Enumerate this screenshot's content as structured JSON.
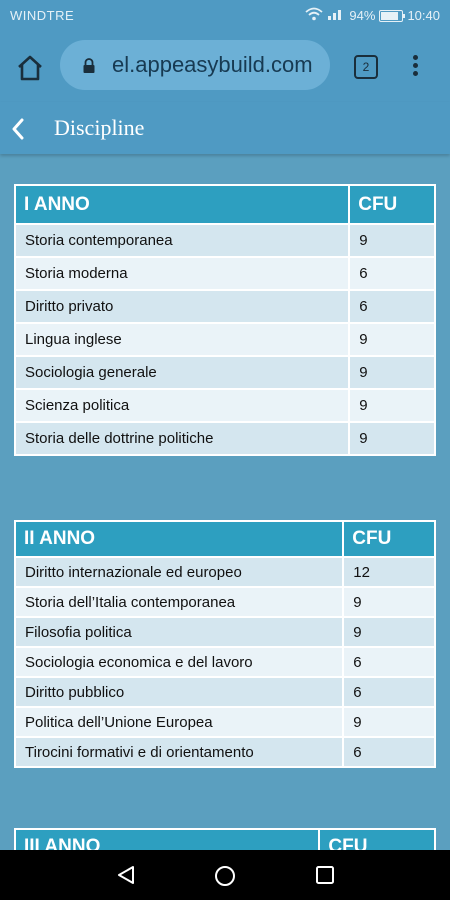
{
  "status": {
    "carrier": "WINDTRE",
    "battery": "94%",
    "time": "10:40"
  },
  "browser": {
    "url": "el.appeasybuild.com",
    "tab_count": "2"
  },
  "appbar": {
    "title": "Discipline"
  },
  "tables": [
    {
      "header": [
        "I ANNO",
        "CFU"
      ],
      "rows": [
        [
          "Storia contemporanea",
          "9"
        ],
        [
          "Storia moderna",
          "6"
        ],
        [
          "Diritto privato",
          "6"
        ],
        [
          "Lingua inglese",
          "9"
        ],
        [
          "Sociologia generale",
          "9"
        ],
        [
          "Scienza politica",
          "9"
        ],
        [
          "Storia delle dottrine politiche",
          "9"
        ]
      ]
    },
    {
      "header": [
        "II ANNO",
        "CFU"
      ],
      "rows": [
        [
          "Diritto internazionale ed europeo",
          "12"
        ],
        [
          "Storia dell’Italia contemporanea",
          "9"
        ],
        [
          "Filosofia politica",
          "9"
        ],
        [
          "Sociologia economica e del lavoro",
          "6"
        ],
        [
          "Diritto pubblico",
          "6"
        ],
        [
          "Politica dell’Unione Europea",
          "9"
        ],
        [
          "Tirocini formativi e di orientamento",
          "6"
        ]
      ]
    },
    {
      "header": [
        "III ANNO",
        "CFU"
      ],
      "rows": []
    }
  ]
}
